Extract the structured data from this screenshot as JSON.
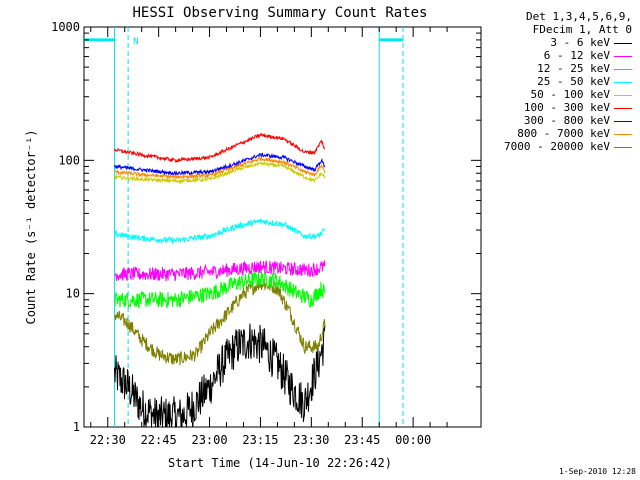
{
  "chart_data": {
    "type": "line",
    "title": "HESSI Observing Summary Count Rates",
    "xlabel": "Start Time (14-Jun-10 22:26:42)",
    "ylabel": "Count Rate (s⁻¹ detector⁻¹)",
    "y_scale": "log",
    "ylim": [
      1,
      1000
    ],
    "xlim_minutes_after_2230": [
      -7,
      110
    ],
    "x_ticks": [
      {
        "minute": 0,
        "label": "22:30"
      },
      {
        "minute": 15,
        "label": "22:45"
      },
      {
        "minute": 30,
        "label": "23:00"
      },
      {
        "minute": 45,
        "label": "23:15"
      },
      {
        "minute": 60,
        "label": "23:30"
      },
      {
        "minute": 75,
        "label": "23:45"
      },
      {
        "minute": 90,
        "label": "00:00"
      }
    ],
    "y_ticks": [
      {
        "value": 1,
        "label": "1"
      },
      {
        "value": 10,
        "label": "10"
      },
      {
        "value": 100,
        "label": "100"
      },
      {
        "value": 1000,
        "label": "1000"
      }
    ],
    "legend_header": [
      "Det 1,3,4,5,6,9,",
      "FDecim 1, Att 0"
    ],
    "series": [
      {
        "name": "3 - 6 keV",
        "color": "#000000",
        "x": [
          2,
          6,
          10,
          14,
          18,
          22,
          26,
          30,
          34,
          38,
          42,
          46,
          50,
          54,
          58,
          62,
          64
        ],
        "values": [
          2.5,
          2,
          1.4,
          1.2,
          1.2,
          1.2,
          1.5,
          2,
          3,
          4,
          4.5,
          4,
          3,
          2,
          1.5,
          3,
          4.5
        ]
      },
      {
        "name": "6 - 12 keV",
        "color": "#ff00ff",
        "x": [
          2,
          10,
          20,
          30,
          40,
          45,
          50,
          60,
          64
        ],
        "values": [
          14,
          14,
          14,
          14.5,
          15.5,
          16,
          15.5,
          15,
          16
        ]
      },
      {
        "name": "12 - 25 keV",
        "color": "#00ff00",
        "x": [
          2,
          10,
          20,
          30,
          38,
          45,
          50,
          56,
          60,
          63,
          64
        ],
        "values": [
          9,
          9,
          9,
          10,
          12,
          13,
          12.5,
          10,
          9,
          11,
          10
        ]
      },
      {
        "name": "25 - 50 keV",
        "color": "#00ffff",
        "x": [
          2,
          10,
          20,
          30,
          38,
          45,
          52,
          58,
          62,
          64
        ],
        "values": [
          28,
          26,
          25,
          27,
          32,
          35,
          33,
          27,
          27,
          30
        ]
      },
      {
        "name": "50 - 100 keV",
        "color": "#cccc00",
        "x": [
          2,
          10,
          20,
          30,
          38,
          45,
          52,
          58,
          61,
          63,
          64
        ],
        "values": [
          75,
          72,
          70,
          72,
          85,
          95,
          90,
          75,
          70,
          80,
          75
        ]
      },
      {
        "name": "100 - 300 keV",
        "color": "#ff0000",
        "x": [
          2,
          10,
          20,
          30,
          38,
          45,
          52,
          58,
          61,
          63,
          64
        ],
        "values": [
          120,
          110,
          100,
          105,
          130,
          155,
          145,
          115,
          115,
          140,
          120
        ]
      },
      {
        "name": "300 - 800 keV",
        "color": "#0000ff",
        "x": [
          2,
          10,
          20,
          30,
          38,
          45,
          52,
          58,
          61,
          63,
          64
        ],
        "values": [
          90,
          85,
          80,
          82,
          95,
          110,
          105,
          90,
          85,
          100,
          90
        ]
      },
      {
        "name": "800 - 7000 keV",
        "color": "#ff8800",
        "x": [
          2,
          10,
          20,
          30,
          38,
          45,
          52,
          58,
          61,
          63,
          64
        ],
        "values": [
          82,
          78,
          75,
          77,
          90,
          103,
          97,
          82,
          78,
          92,
          82
        ]
      },
      {
        "name": "7000 - 20000 keV",
        "color": "#808000",
        "x": [
          2,
          6,
          10,
          15,
          20,
          26,
          30,
          36,
          40,
          45,
          50,
          54,
          58,
          62,
          64
        ],
        "values": [
          7,
          6,
          4.5,
          3.5,
          3.2,
          3.5,
          5,
          7.5,
          10,
          12,
          11,
          7,
          4,
          4,
          6
        ]
      }
    ],
    "annotations": [
      {
        "type": "cyan-bar",
        "x_from": -7,
        "x_to": 2,
        "y": 800
      },
      {
        "type": "cyan-bar",
        "x_from": 80,
        "x_to": 87,
        "y": 800
      },
      {
        "type": "cyan-vline-solid",
        "x": 2
      },
      {
        "type": "cyan-vline-solid",
        "x": 80
      },
      {
        "type": "cyan-vline-dashed",
        "x": 6
      },
      {
        "type": "cyan-vline-dashed",
        "x": 87
      },
      {
        "type": "label",
        "x": 6,
        "y": 800,
        "text": "N"
      }
    ],
    "grid": false,
    "legend_position": "right"
  },
  "footer_timestamp": "1-Sep-2010 12:28"
}
